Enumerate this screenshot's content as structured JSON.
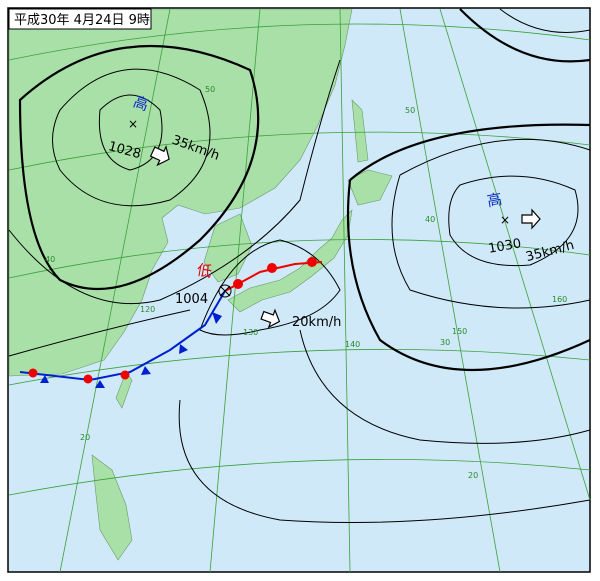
{
  "title": "平成30年 4月24日 9時",
  "systems": [
    {
      "label": "高",
      "pressure": 1028,
      "speed": "35km/h"
    },
    {
      "label": "高",
      "pressure": 1030,
      "speed": "35km/h"
    },
    {
      "label": "低",
      "pressure": 1004,
      "speed": "20km/h"
    }
  ],
  "grid_labels": [
    "50",
    "50",
    "40",
    "40",
    "30",
    "20",
    "20",
    "120",
    "130",
    "140",
    "150",
    "160"
  ]
}
